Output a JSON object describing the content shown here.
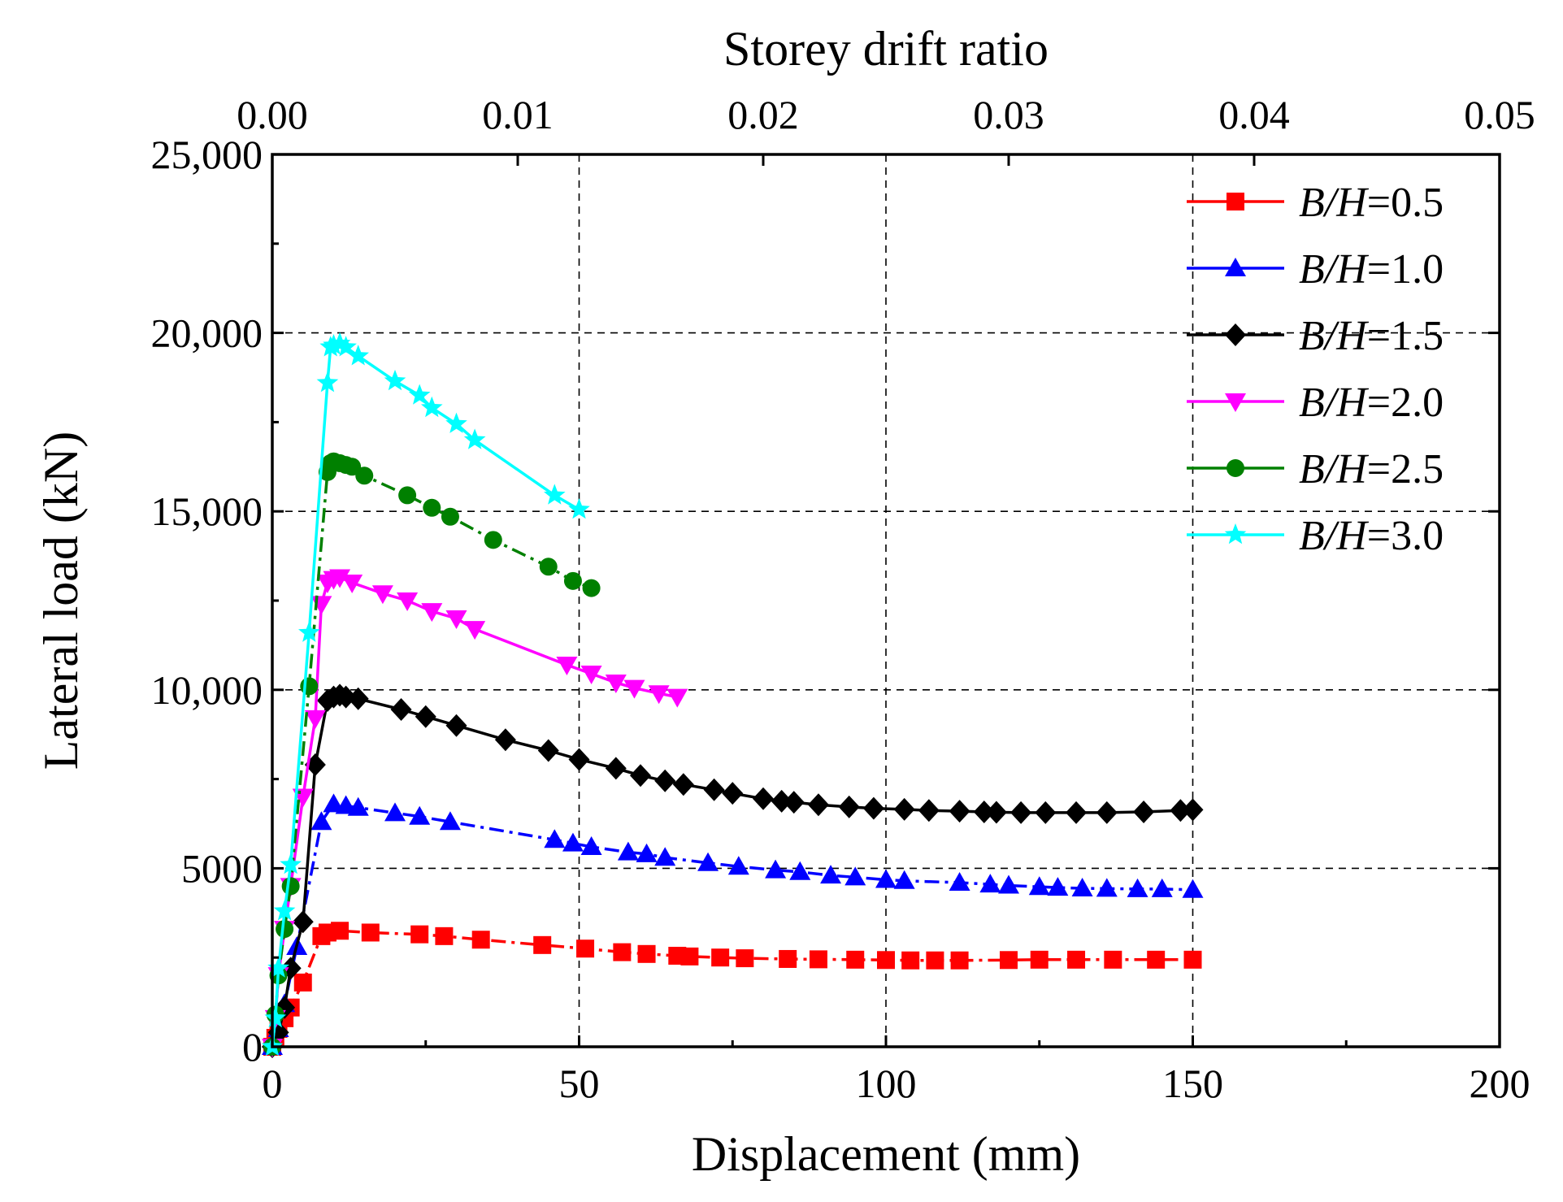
{
  "chart_data": {
    "type": "line",
    "title": "",
    "xlabel": "Displacement (mm)",
    "ylabel": "Lateral load (kN)",
    "x2label": "Storey drift ratio",
    "xlim": [
      0,
      200
    ],
    "ylim": [
      0,
      25000
    ],
    "x2lim": [
      0,
      0.05
    ],
    "x_ticks": [
      {
        "value": 0,
        "label": "0"
      },
      {
        "value": 50,
        "label": "50"
      },
      {
        "value": 100,
        "label": "100"
      },
      {
        "value": 150,
        "label": "150"
      },
      {
        "value": 200,
        "label": "200"
      }
    ],
    "y_ticks": [
      {
        "value": 0,
        "label": "0"
      },
      {
        "value": 5000,
        "label": "5000"
      },
      {
        "value": 10000,
        "label": "10,000"
      },
      {
        "value": 15000,
        "label": "15,000"
      },
      {
        "value": 20000,
        "label": "20,000"
      },
      {
        "value": 25000,
        "label": "25,000"
      }
    ],
    "x2_ticks": [
      {
        "value": 0,
        "label": "0.00"
      },
      {
        "value": 0.01,
        "label": "0.01"
      },
      {
        "value": 0.02,
        "label": "0.02"
      },
      {
        "value": 0.03,
        "label": "0.03"
      },
      {
        "value": 0.04,
        "label": "0.04"
      },
      {
        "value": 0.05,
        "label": "0.05"
      }
    ],
    "grid": true,
    "legend_position": "top-right",
    "series": [
      {
        "name": "B/H=0.5",
        "label_var": "B/H",
        "label_val": "=0.5",
        "color": "#ff0000",
        "marker": "square",
        "line": "dashdot",
        "x": [
          0,
          0.5,
          1,
          2,
          3,
          5,
          8,
          9,
          11,
          16,
          24,
          28,
          34,
          44,
          51,
          57,
          61,
          66,
          68,
          73,
          77,
          84,
          89,
          95,
          100,
          104,
          108,
          112,
          120,
          125,
          131,
          137,
          144,
          150
        ],
        "y": [
          0,
          250,
          500,
          800,
          1100,
          1800,
          3100,
          3200,
          3250,
          3200,
          3150,
          3100,
          3000,
          2850,
          2750,
          2650,
          2600,
          2550,
          2530,
          2500,
          2480,
          2460,
          2450,
          2440,
          2430,
          2420,
          2420,
          2420,
          2430,
          2440,
          2440,
          2440,
          2440,
          2440
        ]
      },
      {
        "name": "B/H=1.0",
        "label_var": "B/H",
        "label_val": "=1.0",
        "color": "#0000ff",
        "marker": "triangle-up",
        "line": "dashdot",
        "x": [
          0,
          1,
          2,
          4,
          8,
          10,
          12,
          14,
          20,
          24,
          29,
          46,
          49,
          52,
          58,
          61,
          64,
          71,
          76,
          82,
          86,
          91,
          95,
          100,
          103,
          112,
          117,
          120,
          125,
          128,
          132,
          136,
          141,
          145,
          150
        ],
        "y": [
          0,
          500,
          1200,
          2800,
          6300,
          6800,
          6750,
          6700,
          6550,
          6450,
          6300,
          5800,
          5700,
          5600,
          5450,
          5400,
          5300,
          5150,
          5050,
          4950,
          4900,
          4800,
          4750,
          4680,
          4650,
          4600,
          4550,
          4520,
          4480,
          4460,
          4440,
          4430,
          4420,
          4420,
          4400
        ]
      },
      {
        "name": "B/H=1.5",
        "label_var": "B/H",
        "label_val": "=1.5",
        "color": "#000000",
        "marker": "diamond",
        "line": "solid",
        "x": [
          0,
          1,
          2,
          3,
          5,
          7,
          9,
          10,
          11,
          12,
          14,
          21,
          25,
          30,
          38,
          45,
          50,
          56,
          60,
          64,
          67,
          72,
          75,
          80,
          83,
          85,
          89,
          94,
          98,
          103,
          107,
          112,
          116,
          118,
          122,
          126,
          131,
          136,
          142,
          148,
          150
        ],
        "y": [
          0,
          400,
          1100,
          2200,
          3500,
          7900,
          9700,
          9800,
          9850,
          9800,
          9750,
          9450,
          9250,
          9000,
          8600,
          8300,
          8050,
          7800,
          7600,
          7450,
          7350,
          7200,
          7100,
          6950,
          6880,
          6850,
          6780,
          6720,
          6680,
          6650,
          6620,
          6600,
          6580,
          6570,
          6560,
          6560,
          6560,
          6560,
          6580,
          6620,
          6640
        ]
      },
      {
        "name": "B/H=2.0",
        "label_var": "B/H",
        "label_val": "=2.0",
        "color": "#ff00ff",
        "marker": "triangle-down",
        "line": "solid",
        "x": [
          0,
          0.5,
          1,
          2,
          3,
          5,
          7,
          8,
          9,
          10,
          11,
          13,
          18,
          22,
          26,
          30,
          33,
          48,
          52,
          56,
          59,
          63,
          66
        ],
        "y": [
          0,
          800,
          2000,
          3300,
          4500,
          7000,
          9200,
          12400,
          13000,
          13100,
          13150,
          13000,
          12700,
          12500,
          12200,
          12000,
          11700,
          10700,
          10450,
          10200,
          10050,
          9900,
          9800
        ]
      },
      {
        "name": "B/H=2.5",
        "label_var": "B/H",
        "label_val": "=2.5",
        "color": "#008000",
        "marker": "circle",
        "line": "dashdot",
        "x": [
          0,
          0.5,
          1,
          2,
          3,
          6,
          9,
          9.5,
          10,
          11,
          12,
          13,
          15,
          22,
          26,
          29,
          36,
          45,
          49,
          52
        ],
        "y": [
          0,
          900,
          2000,
          3300,
          4500,
          10100,
          16100,
          16350,
          16400,
          16350,
          16300,
          16250,
          16000,
          15450,
          15100,
          14850,
          14200,
          13450,
          13050,
          12850
        ]
      },
      {
        "name": "B/H=3.0",
        "label_var": "B/H",
        "label_val": "=3.0",
        "color": "#00ffff",
        "marker": "star",
        "line": "solid",
        "x": [
          0,
          0.5,
          1,
          2,
          3,
          6,
          9,
          9.5,
          10,
          11,
          12,
          14,
          20,
          24,
          26,
          30,
          33,
          46,
          50
        ],
        "y": [
          0,
          800,
          2200,
          3800,
          5100,
          11600,
          18600,
          19600,
          19650,
          19700,
          19600,
          19350,
          18650,
          18250,
          17900,
          17450,
          17000,
          15450,
          15050
        ]
      }
    ]
  }
}
